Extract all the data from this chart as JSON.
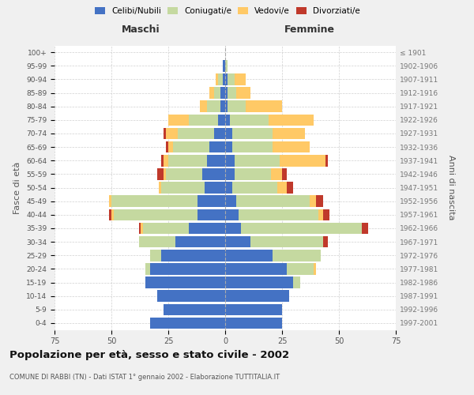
{
  "age_groups": [
    "0-4",
    "5-9",
    "10-14",
    "15-19",
    "20-24",
    "25-29",
    "30-34",
    "35-39",
    "40-44",
    "45-49",
    "50-54",
    "55-59",
    "60-64",
    "65-69",
    "70-74",
    "75-79",
    "80-84",
    "85-89",
    "90-94",
    "95-99",
    "100+"
  ],
  "birth_years": [
    "1997-2001",
    "1992-1996",
    "1987-1991",
    "1982-1986",
    "1977-1981",
    "1972-1976",
    "1967-1971",
    "1962-1966",
    "1957-1961",
    "1952-1956",
    "1947-1951",
    "1942-1946",
    "1937-1941",
    "1932-1936",
    "1927-1931",
    "1922-1926",
    "1917-1921",
    "1912-1916",
    "1907-1911",
    "1902-1906",
    "≤ 1901"
  ],
  "maschi": {
    "celibi": [
      33,
      27,
      30,
      35,
      33,
      28,
      22,
      16,
      12,
      12,
      9,
      10,
      8,
      7,
      5,
      3,
      2,
      2,
      1,
      1,
      0
    ],
    "coniugati": [
      0,
      0,
      0,
      0,
      2,
      5,
      16,
      20,
      37,
      38,
      19,
      16,
      17,
      16,
      16,
      13,
      6,
      3,
      2,
      0,
      0
    ],
    "vedovi": [
      0,
      0,
      0,
      0,
      0,
      0,
      0,
      1,
      1,
      1,
      1,
      1,
      2,
      2,
      5,
      9,
      3,
      2,
      1,
      0,
      0
    ],
    "divorziati": [
      0,
      0,
      0,
      0,
      0,
      0,
      0,
      1,
      1,
      0,
      0,
      3,
      1,
      1,
      1,
      0,
      0,
      0,
      0,
      0,
      0
    ]
  },
  "femmine": {
    "nubili": [
      25,
      25,
      28,
      30,
      27,
      21,
      11,
      7,
      6,
      5,
      3,
      4,
      4,
      3,
      3,
      2,
      1,
      1,
      1,
      0,
      0
    ],
    "coniugate": [
      0,
      0,
      0,
      3,
      12,
      21,
      32,
      53,
      35,
      32,
      20,
      16,
      20,
      18,
      18,
      17,
      8,
      4,
      3,
      1,
      0
    ],
    "vedove": [
      0,
      0,
      0,
      0,
      1,
      0,
      0,
      0,
      2,
      3,
      4,
      5,
      20,
      16,
      14,
      20,
      16,
      6,
      5,
      0,
      0
    ],
    "divorziate": [
      0,
      0,
      0,
      0,
      0,
      0,
      2,
      3,
      3,
      3,
      3,
      2,
      1,
      0,
      0,
      0,
      0,
      0,
      0,
      0,
      0
    ]
  },
  "colors": {
    "celibi": "#4472c4",
    "coniugati": "#c5d9a0",
    "vedovi": "#ffc966",
    "divorziati": "#c0392b"
  },
  "xlim": 75,
  "title": "Popolazione per età, sesso e stato civile - 2002",
  "subtitle": "COMUNE DI RABBI (TN) - Dati ISTAT 1° gennaio 2002 - Elaborazione TUTTITALIA.IT",
  "ylabel_left": "Fasce di età",
  "ylabel_right": "Anni di nascita",
  "xlabel_left": "Maschi",
  "xlabel_right": "Femmine",
  "background_color": "#f0f0f0",
  "plot_bg_color": "#ffffff",
  "grid_color": "#cccccc"
}
